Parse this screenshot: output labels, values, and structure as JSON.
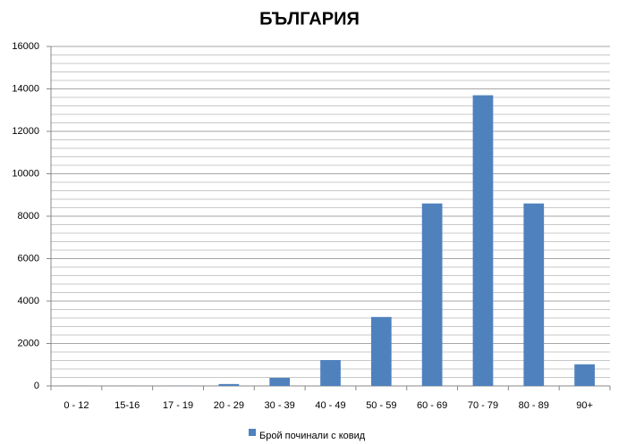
{
  "chart_data": {
    "type": "bar",
    "title": "БЪЛГАРИЯ",
    "categories": [
      "0 - 12",
      "15-16",
      "17 - 19",
      "20 - 29",
      "30 - 39",
      "40 - 49",
      "50 - 59",
      "60 - 69",
      "70 - 79",
      "80 - 89",
      "90+"
    ],
    "series": [
      {
        "name": "Брой починали с ковид",
        "color": "#4f81bd",
        "values": [
          3,
          2,
          5,
          90,
          380,
          1220,
          3250,
          8600,
          13700,
          8600,
          1020
        ]
      }
    ],
    "ylim": [
      0,
      16000
    ],
    "yticks": [
      0,
      2000,
      4000,
      6000,
      8000,
      10000,
      12000,
      14000,
      16000
    ],
    "grid": true,
    "legend": "bottom"
  }
}
